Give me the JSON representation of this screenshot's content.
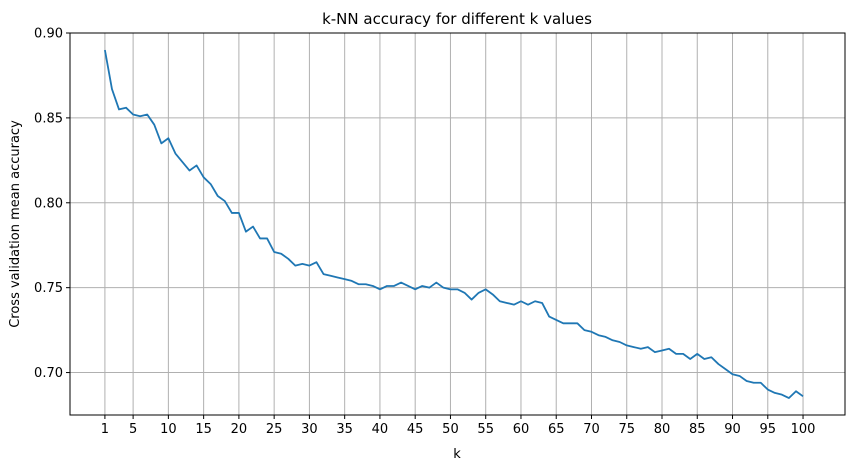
{
  "chart_data": {
    "type": "line",
    "title": "k-NN accuracy for different k values",
    "xlabel": "k",
    "ylabel": "Cross validation mean accuracy",
    "xlim": [
      -3.95,
      105.95
    ],
    "ylim": [
      0.675,
      0.9
    ],
    "grid": true,
    "legend": "none",
    "x_ticks": [
      1,
      5,
      10,
      15,
      20,
      25,
      30,
      35,
      40,
      45,
      50,
      55,
      60,
      65,
      70,
      75,
      80,
      85,
      90,
      95,
      100
    ],
    "x_tick_labels": [
      "1",
      "5",
      "10",
      "15",
      "20",
      "25",
      "30",
      "35",
      "40",
      "45",
      "50",
      "55",
      "60",
      "65",
      "70",
      "75",
      "80",
      "85",
      "90",
      "95",
      "100"
    ],
    "y_ticks": [
      0.7,
      0.75,
      0.8,
      0.85,
      0.9
    ],
    "y_tick_labels": [
      "0.70",
      "0.75",
      "0.80",
      "0.85",
      "0.90"
    ],
    "series": [
      {
        "color": "#1f77b4",
        "x": [
          1,
          2,
          3,
          4,
          5,
          6,
          7,
          8,
          9,
          10,
          11,
          12,
          13,
          14,
          15,
          16,
          17,
          18,
          19,
          20,
          21,
          22,
          23,
          24,
          25,
          26,
          27,
          28,
          29,
          30,
          31,
          32,
          33,
          34,
          35,
          36,
          37,
          38,
          39,
          40,
          41,
          42,
          43,
          44,
          45,
          46,
          47,
          48,
          49,
          50,
          51,
          52,
          53,
          54,
          55,
          56,
          57,
          58,
          59,
          60,
          61,
          62,
          63,
          64,
          65,
          66,
          67,
          68,
          69,
          70,
          71,
          72,
          73,
          74,
          75,
          76,
          77,
          78,
          79,
          80,
          81,
          82,
          83,
          84,
          85,
          86,
          87,
          88,
          89,
          90,
          91,
          92,
          93,
          94,
          95,
          96,
          97,
          98,
          99,
          100
        ],
        "y": [
          0.89,
          0.867,
          0.855,
          0.856,
          0.852,
          0.851,
          0.852,
          0.846,
          0.835,
          0.838,
          0.829,
          0.824,
          0.819,
          0.822,
          0.815,
          0.811,
          0.804,
          0.801,
          0.794,
          0.794,
          0.783,
          0.786,
          0.779,
          0.779,
          0.771,
          0.77,
          0.767,
          0.763,
          0.764,
          0.763,
          0.765,
          0.758,
          0.757,
          0.756,
          0.755,
          0.754,
          0.752,
          0.752,
          0.751,
          0.749,
          0.751,
          0.751,
          0.753,
          0.751,
          0.749,
          0.751,
          0.75,
          0.753,
          0.75,
          0.749,
          0.749,
          0.747,
          0.743,
          0.747,
          0.749,
          0.746,
          0.742,
          0.741,
          0.74,
          0.742,
          0.74,
          0.742,
          0.741,
          0.733,
          0.731,
          0.729,
          0.729,
          0.729,
          0.725,
          0.724,
          0.722,
          0.721,
          0.719,
          0.718,
          0.716,
          0.715,
          0.714,
          0.715,
          0.712,
          0.713,
          0.714,
          0.711,
          0.711,
          0.708,
          0.711,
          0.708,
          0.709,
          0.705,
          0.702,
          0.699,
          0.698,
          0.695,
          0.694,
          0.694,
          0.69,
          0.688,
          0.687,
          0.685,
          0.689,
          0.686
        ]
      }
    ]
  }
}
